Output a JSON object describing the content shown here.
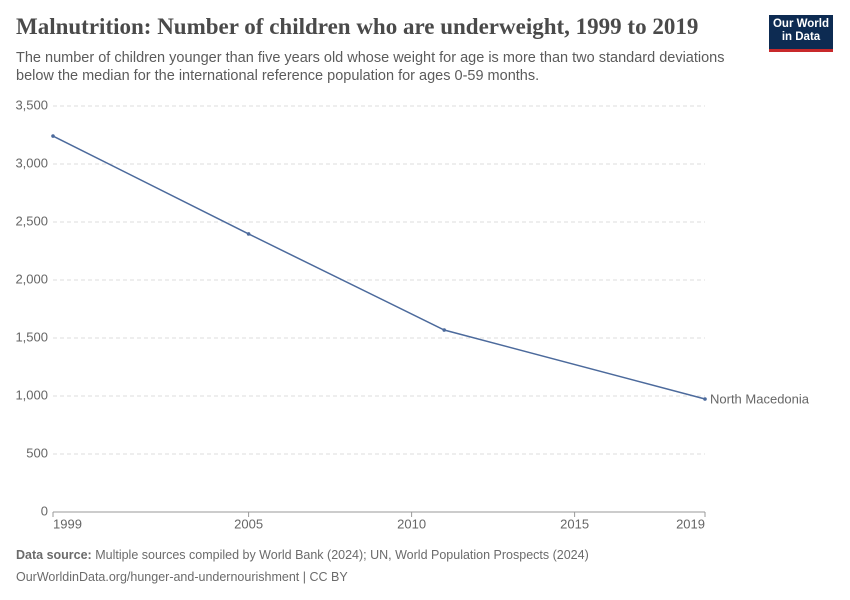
{
  "chart_data": {
    "type": "line",
    "title": "Malnutrition: Number of children who are underweight, 1999 to 2019",
    "subtitle": "The number of children younger than five years old whose weight for age is more than two standard deviations below the median for the international reference population for ages 0-59 months.",
    "logo": [
      "Our World",
      "in Data"
    ],
    "source_label": "Data source:",
    "source_text": "Multiple sources compiled by World Bank (2024); UN, World Population Prospects (2024)",
    "footer": "OurWorldinData.org/hunger-and-undernourishment | CC BY",
    "x": [
      1999,
      2005,
      2011,
      2019
    ],
    "series": [
      {
        "name": "North Macedonia",
        "color": "#4c6a9c",
        "values": [
          3241,
          2397,
          1569,
          974
        ]
      }
    ],
    "xlim": [
      1999,
      2019
    ],
    "xticks": [
      1999,
      2005,
      2010,
      2015,
      2019
    ],
    "ylim": [
      0,
      3500
    ],
    "yticks": [
      0,
      500,
      {
        "value": 1000,
        "label": "1,000"
      },
      {
        "value": 1500,
        "label": "1,500"
      },
      {
        "value": 2000,
        "label": "2,000"
      },
      {
        "value": 2500,
        "label": "2,500"
      },
      {
        "value": 3000,
        "label": "3,000"
      },
      {
        "value": 3500,
        "label": "3,500"
      }
    ],
    "grid": true
  }
}
